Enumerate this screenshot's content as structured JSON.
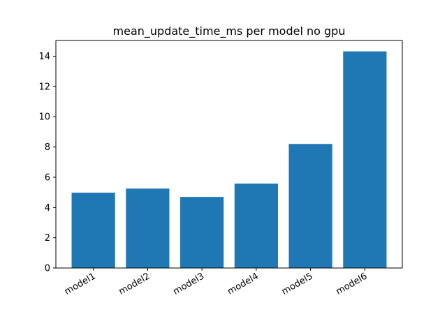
{
  "chart_data": {
    "type": "bar",
    "title": "mean_update_time_ms per model no gpu",
    "xlabel": "",
    "ylabel": "",
    "categories": [
      "model1",
      "model2",
      "model3",
      "model4",
      "model5",
      "model6"
    ],
    "values": [
      4.98,
      5.25,
      4.7,
      5.58,
      8.2,
      14.32
    ],
    "ylim": [
      0,
      15.04
    ],
    "yticks": [
      0,
      2,
      4,
      6,
      8,
      10,
      12,
      14
    ],
    "grid": false,
    "bar_color": "#1f77b4"
  }
}
